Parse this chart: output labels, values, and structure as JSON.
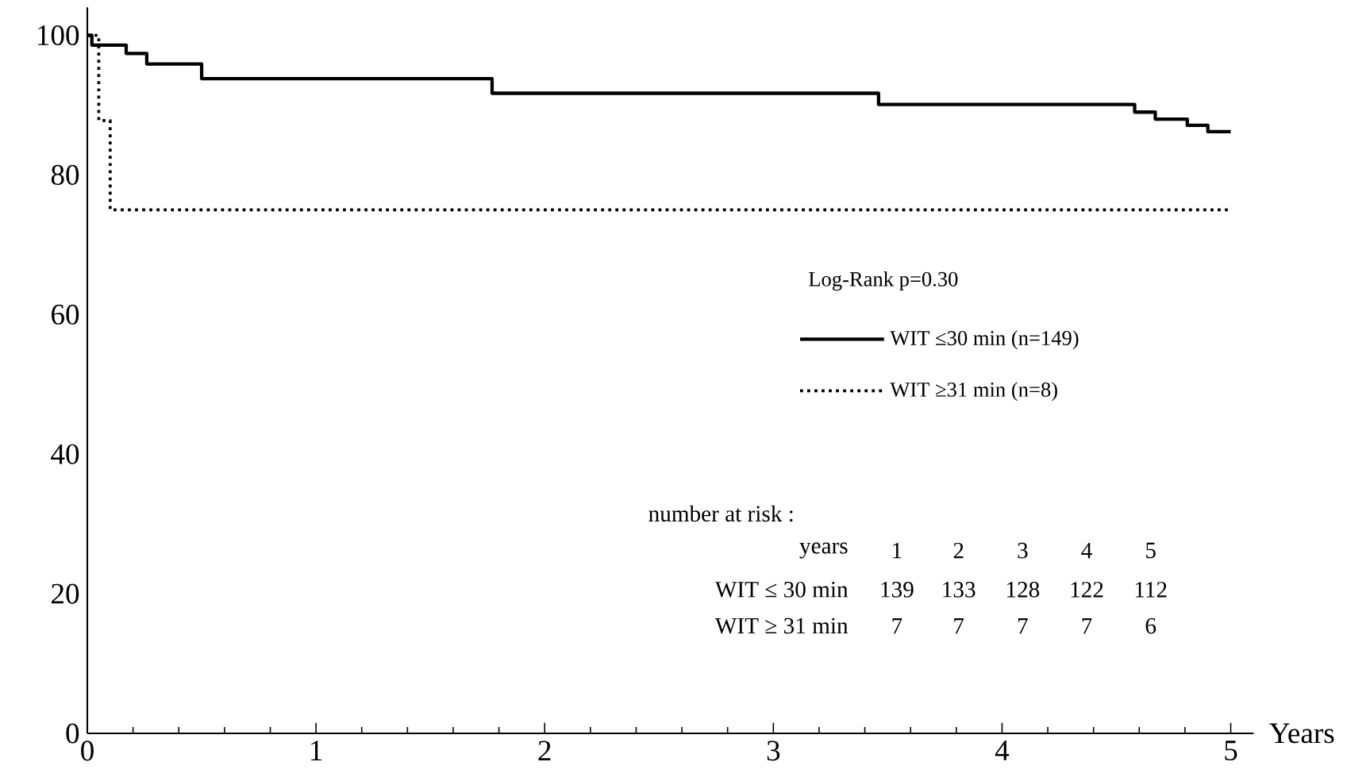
{
  "chart_data": {
    "type": "step",
    "xlabel": "Years",
    "xlim": [
      0,
      5.1
    ],
    "ylim": [
      0,
      104
    ],
    "xticks": [
      0,
      1,
      2,
      3,
      4,
      5
    ],
    "yticks": [
      0,
      20,
      40,
      60,
      80,
      100
    ],
    "legend": "right",
    "grid": false,
    "series": [
      {
        "name": "WIT ≤30 min (n=149)",
        "color": "#000000",
        "line_style": "solid",
        "x": [
          0,
          0.02,
          0.17,
          0.26,
          0.5,
          1.77,
          3.46,
          4.58,
          4.67,
          4.81,
          4.9,
          5.0
        ],
        "values": [
          100,
          98.6,
          97.4,
          95.9,
          93.8,
          91.7,
          90.1,
          89.0,
          88.0,
          87.1,
          86.2,
          86.2
        ]
      },
      {
        "name": "WIT ≥31 min (n=8)",
        "color": "#000000",
        "line_style": "dotted",
        "x": [
          0,
          0.05,
          0.1,
          5.0
        ],
        "values": [
          100,
          87.8,
          75,
          75
        ]
      }
    ],
    "annotations": [
      "Log-Rank p=0.30",
      "number at risk :",
      "years",
      "1",
      "2",
      "3",
      "4",
      "5",
      "WIT ≤ 30 min",
      "139",
      "133",
      "128",
      "122",
      "112",
      "WIT ≥ 31 min",
      "7",
      "7",
      "7",
      "7",
      "6"
    ]
  }
}
